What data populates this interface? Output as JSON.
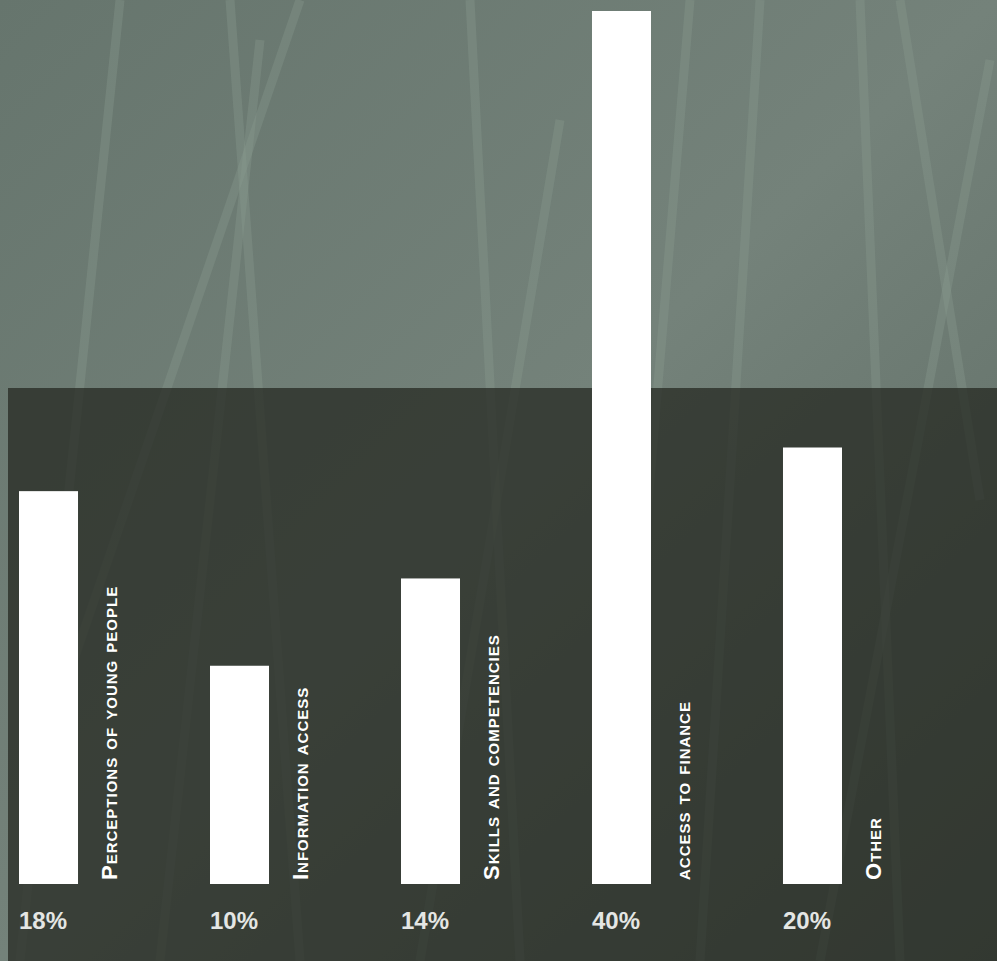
{
  "chart_data": {
    "type": "bar",
    "categories": [
      "Perceptions of young people",
      "Information access",
      "Skills and competencies",
      "access to finance",
      "Other"
    ],
    "values": [
      18,
      10,
      14,
      40,
      20
    ],
    "value_labels": [
      "18%",
      "10%",
      "14%",
      "40%",
      "20%"
    ],
    "color": "#ffffff",
    "ylim": [
      0,
      40
    ],
    "data_labels": true,
    "tick_labels": false,
    "grid": false
  }
}
